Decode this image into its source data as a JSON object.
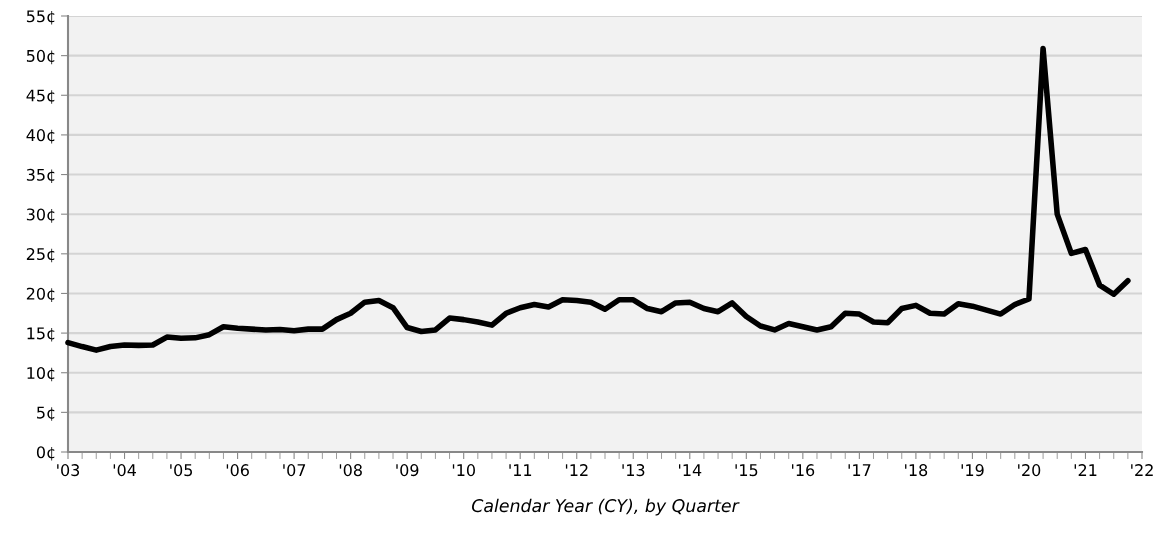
{
  "chart_data": {
    "type": "line",
    "xlabel": "Calendar Year (CY), by Quarter",
    "x": [
      2003,
      2003.25,
      2003.5,
      2003.75,
      2004,
      2004.25,
      2004.5,
      2004.75,
      2005,
      2005.25,
      2005.5,
      2005.75,
      2006,
      2006.25,
      2006.5,
      2006.75,
      2007,
      2007.25,
      2007.5,
      2007.75,
      2008,
      2008.25,
      2008.5,
      2008.75,
      2009,
      2009.25,
      2009.5,
      2009.75,
      2010,
      2010.25,
      2010.5,
      2010.75,
      2011,
      2011.25,
      2011.5,
      2011.75,
      2012,
      2012.25,
      2012.5,
      2012.75,
      2013,
      2013.25,
      2013.5,
      2013.75,
      2014,
      2014.25,
      2014.5,
      2014.75,
      2015,
      2015.25,
      2015.5,
      2015.75,
      2016,
      2016.25,
      2016.5,
      2016.75,
      2017,
      2017.25,
      2017.5,
      2017.75,
      2018,
      2018.25,
      2018.5,
      2018.75,
      2019,
      2019.25,
      2019.5,
      2019.75,
      2020,
      2020.25,
      2020.5,
      2020.75,
      2021,
      2021.25,
      2021.5,
      2021.75
    ],
    "series": [
      {
        "color": "#000000",
        "values": [
          13.8,
          13.3,
          12.85,
          13.3,
          13.5,
          13.45,
          13.5,
          14.5,
          14.35,
          14.4,
          14.8,
          15.8,
          15.6,
          15.5,
          15.4,
          15.45,
          15.3,
          15.5,
          15.5,
          16.7,
          17.5,
          18.9,
          19.1,
          18.2,
          15.7,
          15.2,
          15.4,
          16.9,
          16.7,
          16.4,
          16.0,
          17.5,
          18.2,
          18.6,
          18.3,
          19.2,
          19.1,
          18.9,
          18.0,
          19.2,
          19.2,
          18.1,
          17.7,
          18.8,
          18.9,
          18.1,
          17.7,
          18.8,
          17.1,
          15.9,
          15.4,
          16.2,
          15.8,
          15.4,
          15.8,
          17.5,
          17.4,
          16.4,
          16.3,
          18.1,
          18.5,
          17.5,
          17.4,
          18.7,
          18.4,
          17.9,
          17.4,
          18.6,
          19.3,
          50.9,
          30.0,
          25.05,
          25.55,
          21.05,
          19.9,
          21.6
        ]
      }
    ],
    "xlim": [
      2003,
      2022
    ],
    "xticks": [
      {
        "value": 2003,
        "label": "'03"
      },
      {
        "value": 2004,
        "label": "'04"
      },
      {
        "value": 2005,
        "label": "'05"
      },
      {
        "value": 2006,
        "label": "'06"
      },
      {
        "value": 2007,
        "label": "'07"
      },
      {
        "value": 2008,
        "label": "'08"
      },
      {
        "value": 2009,
        "label": "'09"
      },
      {
        "value": 2010,
        "label": "'10"
      },
      {
        "value": 2011,
        "label": "'11"
      },
      {
        "value": 2012,
        "label": "'12"
      },
      {
        "value": 2013,
        "label": "'13"
      },
      {
        "value": 2014,
        "label": "'14"
      },
      {
        "value": 2015,
        "label": "'15"
      },
      {
        "value": 2016,
        "label": "'16"
      },
      {
        "value": 2017,
        "label": "'17"
      },
      {
        "value": 2018,
        "label": "'18"
      },
      {
        "value": 2019,
        "label": "'19"
      },
      {
        "value": 2020,
        "label": "'20"
      },
      {
        "value": 2021,
        "label": "'21"
      },
      {
        "value": 2022,
        "label": "'22"
      }
    ],
    "ylim": [
      0,
      55
    ],
    "yticks": [
      {
        "value": 0,
        "label": "0¢"
      },
      {
        "value": 5,
        "label": "5¢"
      },
      {
        "value": 10,
        "label": "10¢"
      },
      {
        "value": 15,
        "label": "15¢"
      },
      {
        "value": 20,
        "label": "20¢"
      },
      {
        "value": 25,
        "label": "25¢"
      },
      {
        "value": 30,
        "label": "30¢"
      },
      {
        "value": 35,
        "label": "35¢"
      },
      {
        "value": 40,
        "label": "40¢"
      },
      {
        "value": 45,
        "label": "45¢"
      },
      {
        "value": 50,
        "label": "50¢"
      },
      {
        "value": 55,
        "label": "55¢"
      }
    ],
    "grid": "y",
    "legend": false,
    "marker": "none",
    "line_style": "solid"
  }
}
